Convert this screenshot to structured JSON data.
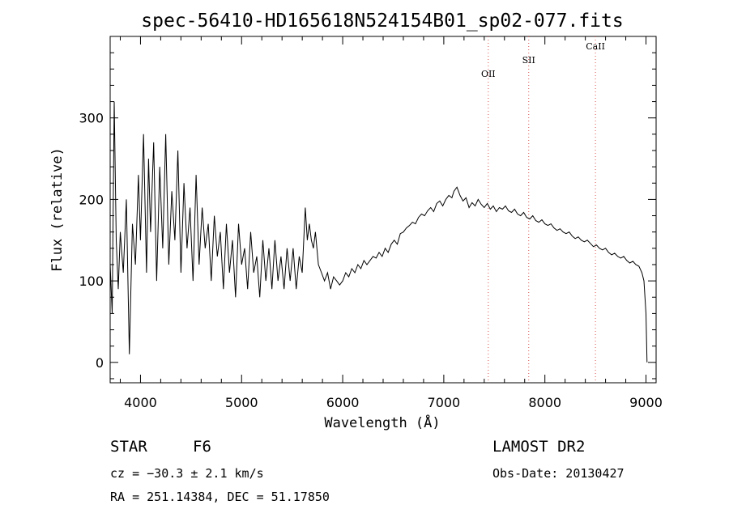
{
  "chart_data": {
    "type": "line",
    "title": "spec-56410-HD165618N524154B01_sp02-077.fits",
    "xlabel": "Wavelength (Å)",
    "ylabel": "Flux (relative)",
    "xlim": [
      3700,
      9100
    ],
    "ylim": [
      -25,
      400
    ],
    "xticks": [
      4000,
      5000,
      6000,
      7000,
      8000,
      9000
    ],
    "yticks": [
      0,
      100,
      200,
      300
    ],
    "grid": false,
    "series": [
      {
        "color": "#000000",
        "x": [
          3700,
          3720,
          3740,
          3760,
          3780,
          3800,
          3830,
          3860,
          3890,
          3920,
          3950,
          3980,
          4000,
          4030,
          4060,
          4080,
          4100,
          4130,
          4160,
          4190,
          4220,
          4250,
          4280,
          4310,
          4340,
          4370,
          4400,
          4430,
          4460,
          4490,
          4520,
          4550,
          4580,
          4610,
          4640,
          4670,
          4700,
          4730,
          4760,
          4790,
          4820,
          4850,
          4880,
          4910,
          4940,
          4970,
          5000,
          5030,
          5060,
          5090,
          5120,
          5150,
          5180,
          5210,
          5240,
          5270,
          5300,
          5330,
          5360,
          5390,
          5420,
          5450,
          5480,
          5510,
          5540,
          5570,
          5600,
          5630,
          5650,
          5670,
          5690,
          5710,
          5730,
          5760,
          5790,
          5820,
          5850,
          5880,
          5910,
          5940,
          5970,
          6000,
          6030,
          6060,
          6090,
          6120,
          6150,
          6180,
          6210,
          6240,
          6270,
          6300,
          6330,
          6360,
          6390,
          6420,
          6450,
          6480,
          6510,
          6540,
          6570,
          6600,
          6630,
          6660,
          6690,
          6720,
          6750,
          6780,
          6810,
          6840,
          6870,
          6900,
          6930,
          6960,
          6990,
          7020,
          7050,
          7080,
          7100,
          7130,
          7160,
          7190,
          7220,
          7250,
          7280,
          7310,
          7340,
          7370,
          7400,
          7430,
          7460,
          7490,
          7520,
          7550,
          7580,
          7610,
          7640,
          7670,
          7700,
          7730,
          7760,
          7790,
          7820,
          7850,
          7880,
          7910,
          7940,
          7970,
          8000,
          8030,
          8060,
          8090,
          8120,
          8150,
          8180,
          8210,
          8240,
          8270,
          8300,
          8330,
          8360,
          8390,
          8420,
          8450,
          8480,
          8510,
          8540,
          8570,
          8600,
          8630,
          8660,
          8690,
          8720,
          8750,
          8780,
          8810,
          8840,
          8870,
          8900,
          8930,
          8960,
          8980,
          9000,
          9010
        ],
        "y": [
          120,
          60,
          320,
          150,
          90,
          160,
          110,
          200,
          10,
          170,
          120,
          230,
          150,
          280,
          110,
          250,
          160,
          270,
          100,
          240,
          140,
          280,
          120,
          210,
          150,
          260,
          110,
          220,
          140,
          190,
          100,
          230,
          120,
          190,
          140,
          170,
          100,
          180,
          130,
          160,
          90,
          170,
          110,
          150,
          80,
          170,
          120,
          140,
          90,
          160,
          110,
          130,
          80,
          150,
          100,
          140,
          90,
          150,
          100,
          130,
          90,
          140,
          100,
          140,
          90,
          130,
          110,
          190,
          150,
          170,
          150,
          140,
          160,
          120,
          110,
          100,
          110,
          90,
          105,
          100,
          95,
          100,
          110,
          105,
          115,
          110,
          120,
          115,
          125,
          120,
          125,
          130,
          128,
          135,
          130,
          140,
          135,
          145,
          150,
          145,
          158,
          160,
          165,
          168,
          172,
          170,
          178,
          182,
          180,
          186,
          190,
          185,
          195,
          198,
          192,
          200,
          205,
          202,
          210,
          215,
          205,
          198,
          202,
          190,
          196,
          192,
          200,
          194,
          190,
          195,
          188,
          192,
          185,
          190,
          188,
          192,
          186,
          184,
          188,
          182,
          180,
          184,
          178,
          176,
          180,
          174,
          172,
          175,
          170,
          168,
          170,
          165,
          162,
          164,
          160,
          158,
          160,
          155,
          152,
          154,
          150,
          148,
          150,
          146,
          142,
          144,
          140,
          138,
          140,
          135,
          132,
          134,
          130,
          128,
          130,
          125,
          122,
          124,
          120,
          118,
          110,
          100,
          60,
          0
        ]
      }
    ],
    "annotations": [
      {
        "text": "OII",
        "x": 7440
      },
      {
        "text": "SII",
        "x": 7840
      },
      {
        "text": "CaII",
        "x": 8500
      }
    ],
    "annotation_color": "#d9534f"
  },
  "info": {
    "object_class": "STAR",
    "subclass": "F6",
    "survey": "LAMOST DR2",
    "cz": "cz = −30.3 ± 2.1 km/s",
    "obs_date": "Obs-Date: 20130427",
    "coords": "RA = 251.14384, DEC =  51.17850"
  }
}
